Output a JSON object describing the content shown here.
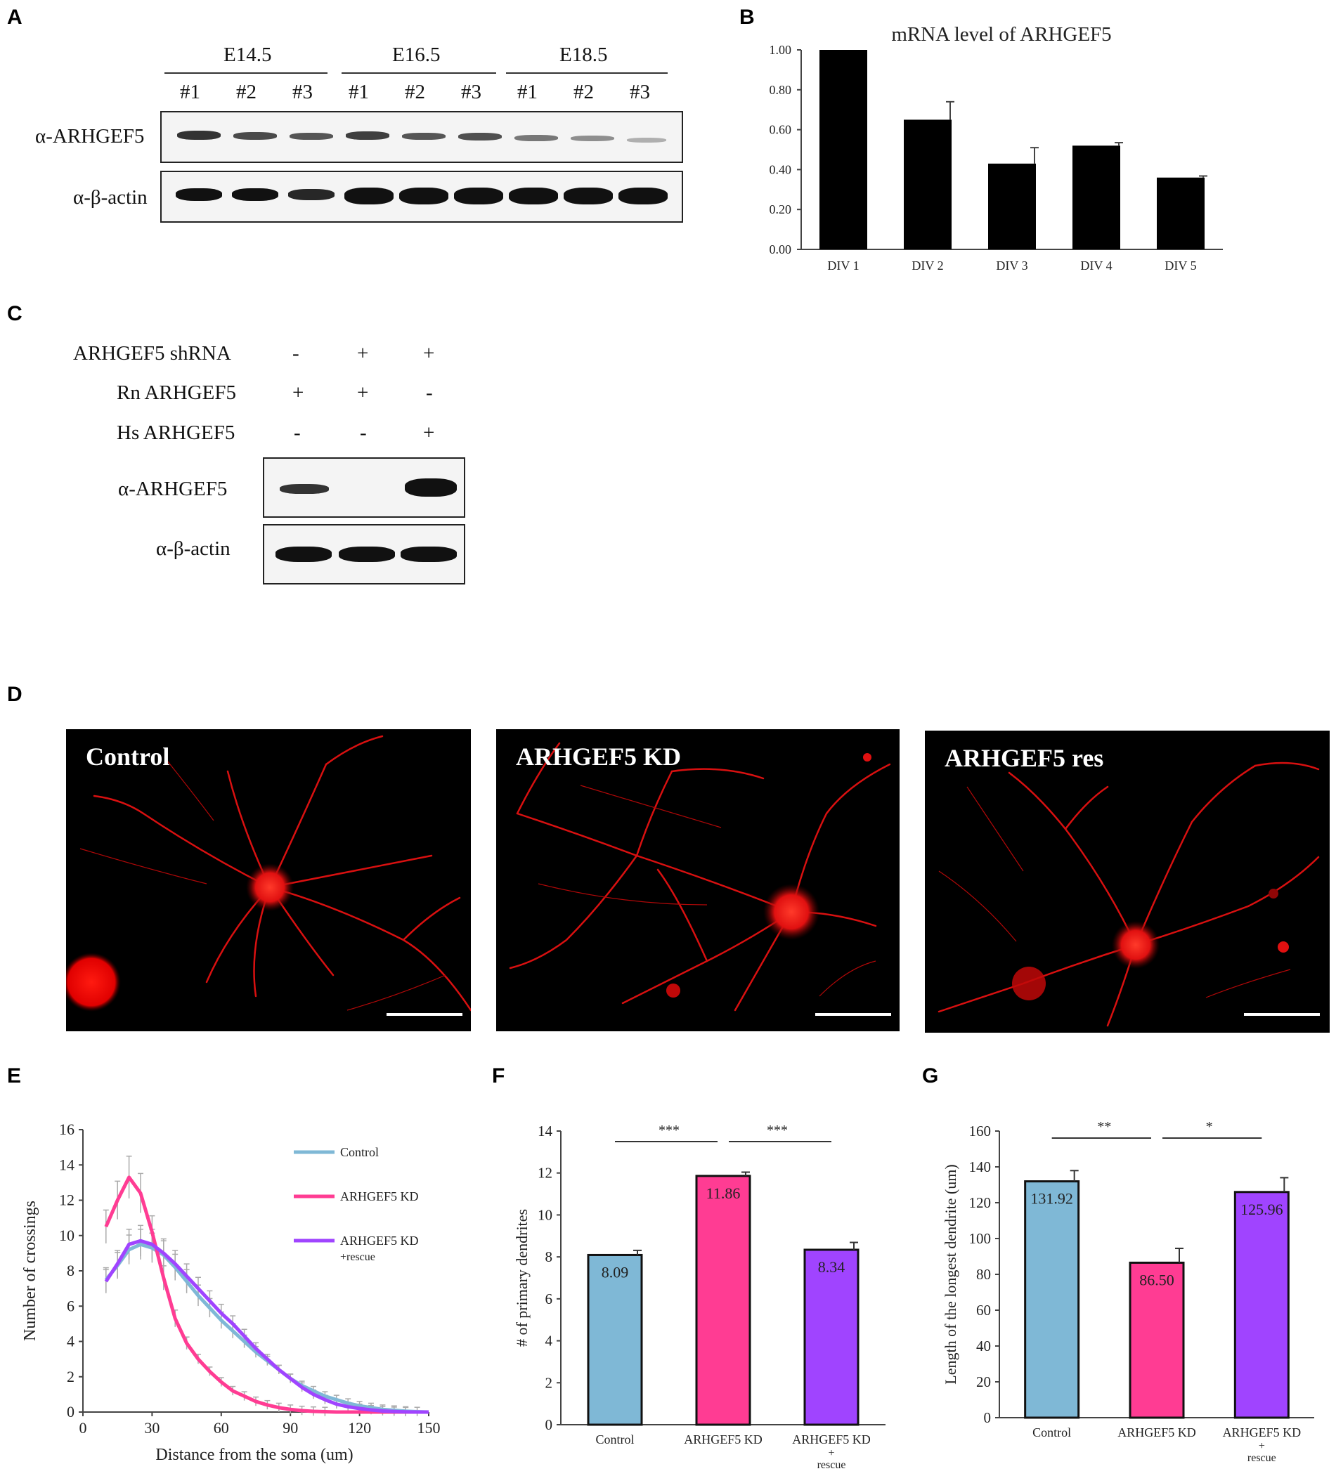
{
  "panels": {
    "A": "A",
    "B": "B",
    "C": "C",
    "D": "D",
    "E": "E",
    "F": "F",
    "G": "G"
  },
  "panelA": {
    "groups": [
      "E14.5",
      "E16.5",
      "E18.5"
    ],
    "lanes": [
      "#1",
      "#2",
      "#3",
      "#1",
      "#2",
      "#3",
      "#1",
      "#2",
      "#3"
    ],
    "rows": [
      "α-ARHGEF5",
      "α-β-actin"
    ]
  },
  "panelC": {
    "conditions": [
      {
        "label": "ARHGEF5  shRNA",
        "marks": [
          "-",
          "+",
          "+"
        ]
      },
      {
        "label": "Rn ARHGEF5",
        "marks": [
          "+",
          "+",
          "-"
        ]
      },
      {
        "label": "Hs ARHGEF5",
        "marks": [
          "-",
          "-",
          "+"
        ]
      }
    ],
    "rows": [
      "α-ARHGEF5",
      "α-β-actin"
    ]
  },
  "panelD": {
    "titles": [
      "Control",
      "ARHGEF5 KD",
      "ARHGEF5 res"
    ]
  },
  "colors": {
    "control": "#7fb8d6",
    "kd": "#ff3c93",
    "rescue": "#a044ff",
    "black": "#000000"
  },
  "chart_data": [
    {
      "id": "B",
      "type": "bar",
      "title": "mRNA level of ARHGEF5",
      "categories": [
        "DIV 1",
        "DIV 2",
        "DIV 3",
        "DIV 4",
        "DIV 5"
      ],
      "values": [
        1.0,
        0.65,
        0.43,
        0.52,
        0.36
      ],
      "errors": [
        0,
        0.09,
        0.08,
        0.015,
        0.008
      ],
      "ylim": [
        0,
        1.0
      ],
      "yticks": [
        "0.00",
        "0.20",
        "0.40",
        "0.60",
        "0.80",
        "1.00"
      ]
    },
    {
      "id": "E",
      "type": "line",
      "xlabel": "Distance from the soma (um)",
      "ylabel": "Number of crossings",
      "xlim": [
        0,
        150
      ],
      "ylim": [
        0,
        16
      ],
      "xticks": [
        "0",
        "30",
        "60",
        "90",
        "120",
        "150"
      ],
      "yticks": [
        "0",
        "2",
        "4",
        "6",
        "8",
        "10",
        "12",
        "14",
        "16"
      ],
      "legend": [
        "Control",
        "ARHGEF5 KD",
        "ARHGEF5 KD",
        "+rescue"
      ],
      "series": [
        {
          "name": "Control",
          "x": [
            10,
            15,
            20,
            25,
            30,
            35,
            40,
            45,
            50,
            55,
            60,
            65,
            70,
            75,
            80,
            85,
            90,
            95,
            100,
            105,
            110,
            115,
            120,
            125,
            130,
            135,
            140,
            145,
            150
          ],
          "y": [
            7.5,
            8.3,
            9.2,
            9.5,
            9.3,
            8.9,
            8.2,
            7.4,
            6.6,
            5.9,
            5.2,
            4.6,
            4.0,
            3.4,
            2.9,
            2.4,
            1.9,
            1.5,
            1.2,
            0.9,
            0.7,
            0.5,
            0.35,
            0.25,
            0.15,
            0.1,
            0.05,
            0.02,
            0
          ]
        },
        {
          "name": "ARHGEF5 KD",
          "x": [
            10,
            15,
            20,
            25,
            30,
            35,
            40,
            45,
            50,
            55,
            60,
            65,
            70,
            75,
            80,
            85,
            90,
            95,
            100,
            105,
            110,
            115,
            120,
            125,
            130,
            135,
            140,
            145,
            150
          ],
          "y": [
            10.5,
            12.0,
            13.3,
            12.4,
            10.2,
            7.6,
            5.3,
            3.9,
            3.0,
            2.3,
            1.7,
            1.2,
            0.9,
            0.6,
            0.4,
            0.25,
            0.15,
            0.08,
            0.04,
            0.02,
            0,
            0,
            0,
            0,
            0,
            0,
            0,
            0,
            0
          ]
        },
        {
          "name": "ARHGEF5 KD +rescue",
          "x": [
            10,
            15,
            20,
            25,
            30,
            35,
            40,
            45,
            50,
            55,
            60,
            65,
            70,
            75,
            80,
            85,
            90,
            95,
            100,
            105,
            110,
            115,
            120,
            125,
            130,
            135,
            140,
            145,
            150
          ],
          "y": [
            7.4,
            8.4,
            9.5,
            9.7,
            9.5,
            9.0,
            8.4,
            7.7,
            7.0,
            6.3,
            5.6,
            5.0,
            4.3,
            3.6,
            3.0,
            2.4,
            1.9,
            1.4,
            1.0,
            0.7,
            0.45,
            0.3,
            0.2,
            0.12,
            0.06,
            0.03,
            0.01,
            0,
            0
          ]
        }
      ]
    },
    {
      "id": "F",
      "type": "bar",
      "ylabel": "# of primary dendrites",
      "categories": [
        "Control",
        "ARHGEF5 KD",
        "ARHGEF5 KD",
        "+",
        "rescue"
      ],
      "values": [
        8.09,
        11.86,
        8.34
      ],
      "labels": [
        "8.09",
        "11.86",
        "8.34"
      ],
      "errors": [
        0.22,
        0.18,
        0.35
      ],
      "ylim": [
        0,
        14
      ],
      "yticks": [
        "0",
        "2",
        "4",
        "6",
        "8",
        "10",
        "12",
        "14"
      ],
      "significance": [
        "***",
        "***"
      ]
    },
    {
      "id": "G",
      "type": "bar",
      "ylabel": "Length of the longest dendrite (um)",
      "categories": [
        "Control",
        "ARHGEF5 KD",
        "ARHGEF5 KD",
        "+",
        "rescue"
      ],
      "values": [
        131.92,
        86.5,
        125.96
      ],
      "labels": [
        "131.92",
        "86.50",
        "125.96"
      ],
      "errors": [
        6,
        8,
        8
      ],
      "ylim": [
        0,
        160
      ],
      "yticks": [
        "0",
        "20",
        "40",
        "60",
        "80",
        "100",
        "120",
        "140",
        "160"
      ],
      "significance": [
        "**",
        "*"
      ]
    }
  ]
}
